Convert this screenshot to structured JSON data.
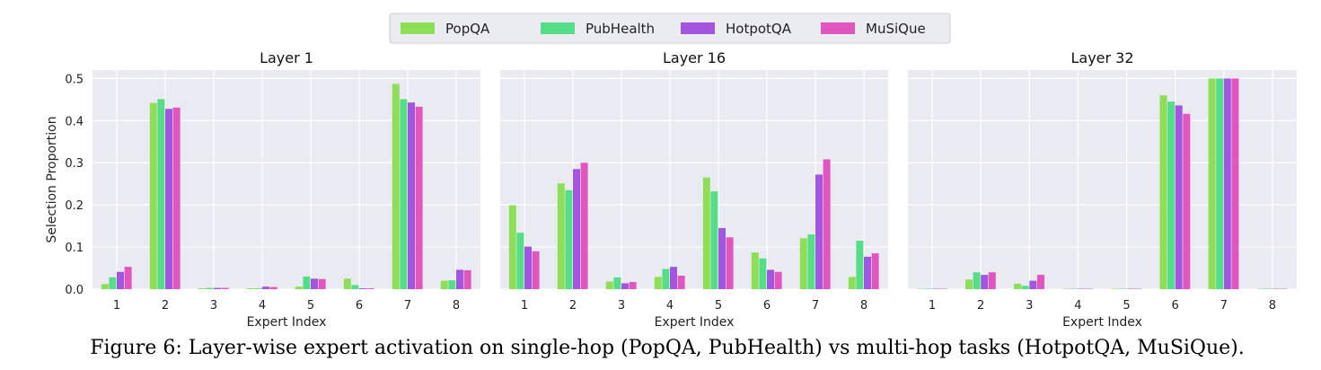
{
  "legend": {
    "position": "top-center",
    "entries": [
      {
        "name": "PopQA",
        "color": "#8EDF55"
      },
      {
        "name": "PubHealth",
        "color": "#55DD88"
      },
      {
        "name": "HotpotQA",
        "color": "#A256E0"
      },
      {
        "name": "MuSiQue",
        "color": "#E055BE"
      }
    ]
  },
  "caption": "Figure 6: Layer-wise expert activation on single-hop (PopQA, PubHealth) vs multi-hop tasks (HotpotQA, MuSiQue).",
  "chart_data": [
    {
      "type": "bar",
      "title": "Layer 1",
      "xlabel": "Expert Index",
      "ylabel": "Selection Proportion",
      "ylim": [
        0,
        0.52
      ],
      "yticks": [
        "0.0",
        "0.1",
        "0.2",
        "0.3",
        "0.4",
        "0.5"
      ],
      "grid": true,
      "categories": [
        "1",
        "2",
        "3",
        "4",
        "5",
        "6",
        "7",
        "8"
      ],
      "series": [
        {
          "name": "PopQA",
          "values": [
            0.012,
            0.442,
            0.002,
            0.002,
            0.006,
            0.025,
            0.487,
            0.02
          ]
        },
        {
          "name": "PubHealth",
          "values": [
            0.028,
            0.451,
            0.003,
            0.002,
            0.03,
            0.01,
            0.451,
            0.021
          ]
        },
        {
          "name": "HotpotQA",
          "values": [
            0.041,
            0.428,
            0.003,
            0.006,
            0.025,
            0.002,
            0.443,
            0.046
          ]
        },
        {
          "name": "MuSiQue",
          "values": [
            0.053,
            0.431,
            0.003,
            0.005,
            0.024,
            0.002,
            0.433,
            0.045
          ]
        }
      ]
    },
    {
      "type": "bar",
      "title": "Layer 16",
      "xlabel": "Expert Index",
      "ylabel": "",
      "ylim": [
        0,
        0.52
      ],
      "grid": true,
      "categories": [
        "1",
        "2",
        "3",
        "4",
        "5",
        "6",
        "7",
        "8"
      ],
      "series": [
        {
          "name": "PopQA",
          "values": [
            0.199,
            0.251,
            0.018,
            0.029,
            0.265,
            0.087,
            0.121,
            0.029
          ]
        },
        {
          "name": "PubHealth",
          "values": [
            0.134,
            0.235,
            0.028,
            0.048,
            0.232,
            0.073,
            0.13,
            0.115
          ]
        },
        {
          "name": "HotpotQA",
          "values": [
            0.101,
            0.285,
            0.014,
            0.053,
            0.145,
            0.046,
            0.272,
            0.077
          ]
        },
        {
          "name": "MuSiQue",
          "values": [
            0.09,
            0.3,
            0.017,
            0.032,
            0.123,
            0.041,
            0.308,
            0.085
          ]
        }
      ]
    },
    {
      "type": "bar",
      "title": "Layer 32",
      "xlabel": "Expert Index",
      "ylabel": "",
      "ylim": [
        0,
        0.52
      ],
      "grid": true,
      "categories": [
        "1",
        "2",
        "3",
        "4",
        "5",
        "6",
        "7",
        "8"
      ],
      "series": [
        {
          "name": "PopQA",
          "values": [
            0.001,
            0.023,
            0.013,
            0.001,
            0.001,
            0.46,
            0.5,
            0.001
          ]
        },
        {
          "name": "PubHealth",
          "values": [
            0.001,
            0.04,
            0.008,
            0.001,
            0.001,
            0.445,
            0.5,
            0.001
          ]
        },
        {
          "name": "HotpotQA",
          "values": [
            0.001,
            0.034,
            0.02,
            0.001,
            0.001,
            0.436,
            0.5,
            0.001
          ]
        },
        {
          "name": "MuSiQue",
          "values": [
            0.001,
            0.04,
            0.034,
            0.001,
            0.001,
            0.416,
            0.5,
            0.001
          ]
        }
      ]
    }
  ]
}
